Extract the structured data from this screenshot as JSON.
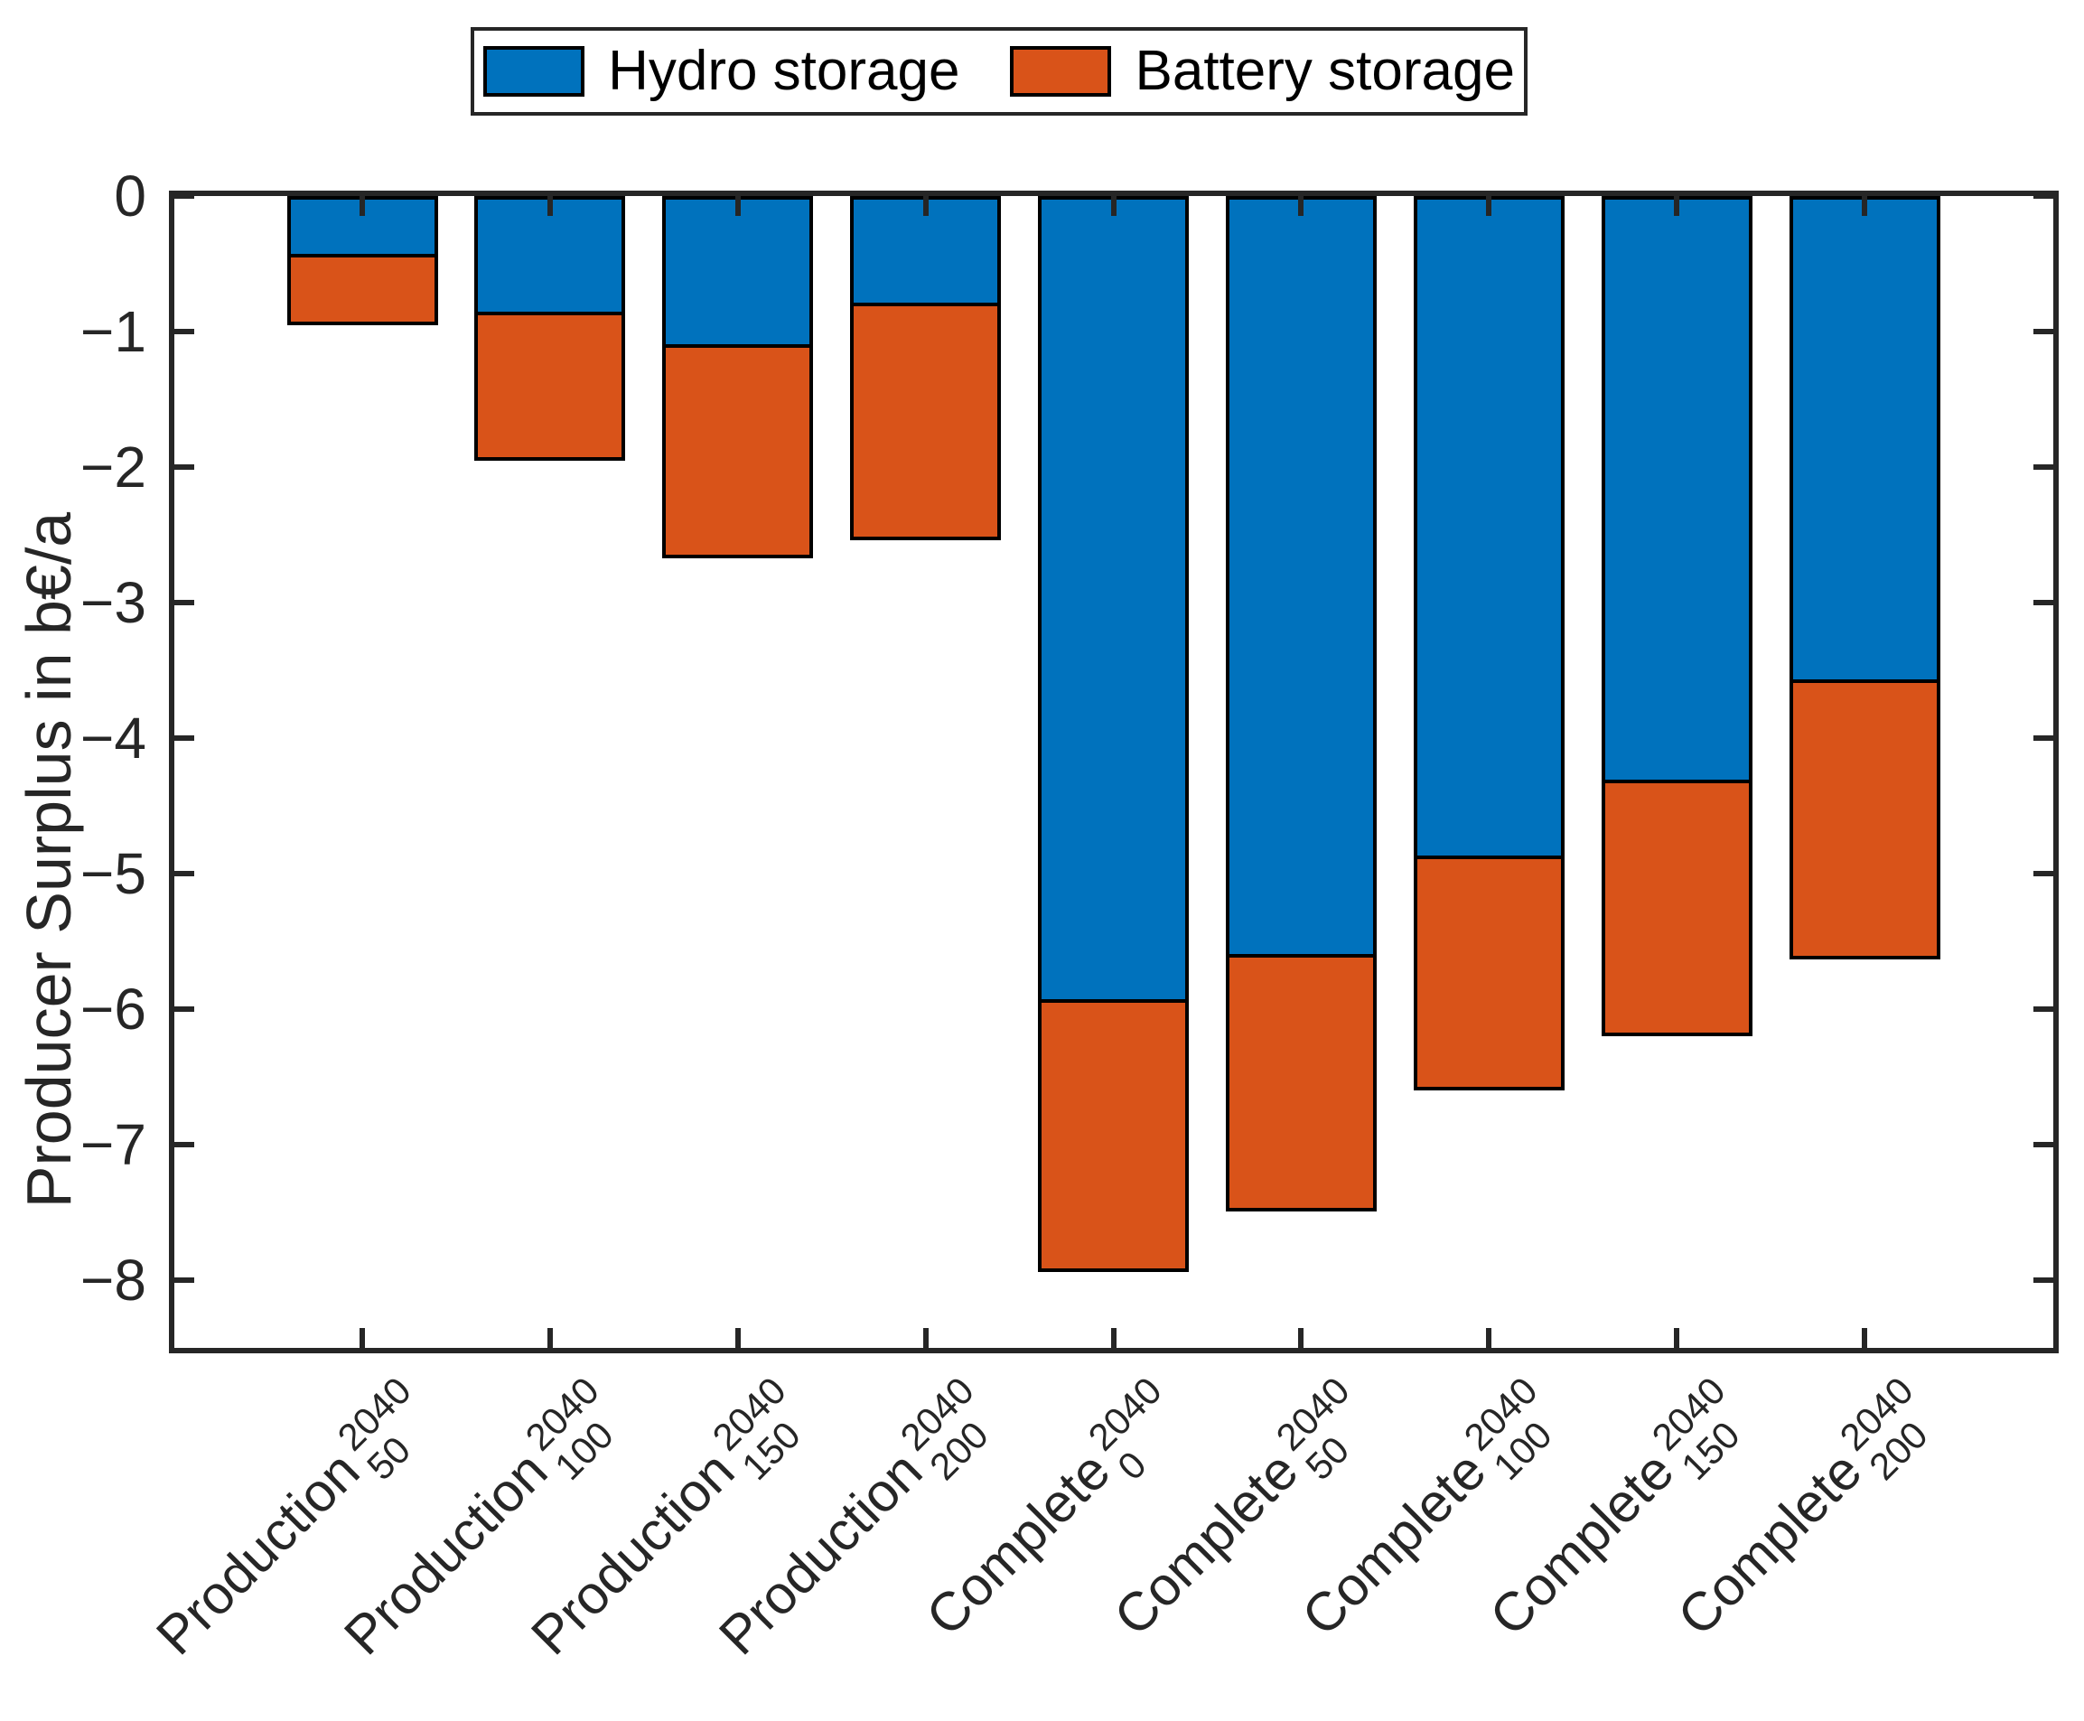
{
  "legend": {
    "entries": [
      {
        "label": "Hydro storage",
        "color": "#0072BD"
      },
      {
        "label": "Battery storage",
        "color": "#D95319"
      }
    ],
    "position": "top"
  },
  "axes": {
    "ylabel": "Producer Surplus in b€/a",
    "xlabel": "",
    "ytick_labels": [
      "0",
      "−1",
      "−2",
      "−3",
      "−4",
      "−5",
      "−6",
      "−7",
      "−8"
    ]
  },
  "chart_data": {
    "type": "bar",
    "stacked": true,
    "orientation": "vertical",
    "title": "",
    "ylabel": "Producer Surplus in b€/a",
    "xlabel": "",
    "ylim": [
      -8.5,
      0
    ],
    "yticks": [
      0,
      -1,
      -2,
      -3,
      -4,
      -5,
      -6,
      -7,
      -8
    ],
    "grid": false,
    "legend_position": "top-outside",
    "bar_edge_color": "#000000",
    "categories": [
      {
        "base": "Production",
        "sup": "2040",
        "sub": "50"
      },
      {
        "base": "Production",
        "sup": "2040",
        "sub": "100"
      },
      {
        "base": "Production",
        "sup": "2040",
        "sub": "150"
      },
      {
        "base": "Production",
        "sup": "2040",
        "sub": "200"
      },
      {
        "base": "Complete",
        "sup": "2040",
        "sub": "0"
      },
      {
        "base": "Complete",
        "sup": "2040",
        "sub": "50"
      },
      {
        "base": "Complete",
        "sup": "2040",
        "sub": "100"
      },
      {
        "base": "Complete",
        "sup": "2040",
        "sub": "150"
      },
      {
        "base": "Complete",
        "sup": "2040",
        "sub": "200"
      }
    ],
    "series": [
      {
        "name": "Hydro storage",
        "color": "#0072BD",
        "values": [
          -0.45,
          -0.88,
          -1.12,
          -0.81,
          -5.95,
          -5.62,
          -4.89,
          -4.33,
          -3.59
        ]
      },
      {
        "name": "Battery storage",
        "color": "#D95319",
        "values": [
          -0.5,
          -1.07,
          -1.55,
          -1.73,
          -1.99,
          -1.87,
          -1.71,
          -1.87,
          -2.04
        ]
      }
    ],
    "stack_totals": [
      -0.95,
      -1.95,
      -2.67,
      -2.54,
      -7.94,
      -7.49,
      -6.6,
      -6.2,
      -5.63
    ]
  }
}
